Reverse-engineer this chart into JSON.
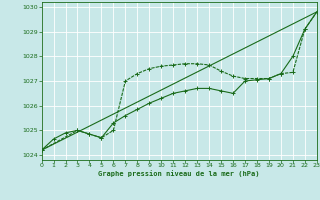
{
  "title": "Graphe pression niveau de la mer (hPa)",
  "bg_color": "#c8e8e8",
  "grid_color": "#ffffff",
  "line_color": "#1a6b1a",
  "xlim": [
    0,
    23
  ],
  "ylim": [
    1023.8,
    1030.2
  ],
  "xtick_vals": [
    0,
    1,
    2,
    3,
    4,
    5,
    6,
    7,
    8,
    9,
    10,
    11,
    12,
    13,
    14,
    15,
    16,
    17,
    18,
    19,
    20,
    21,
    22,
    23
  ],
  "ytick_vals": [
    1024,
    1025,
    1026,
    1027,
    1028,
    1029,
    1030
  ],
  "series1_x": [
    0,
    1,
    2,
    3,
    4,
    5,
    6,
    7,
    8,
    9,
    10,
    11,
    12,
    13,
    14,
    15,
    16,
    17,
    18,
    19,
    20,
    21,
    22,
    23
  ],
  "series1_y": [
    1024.2,
    1024.65,
    1024.9,
    1025.0,
    1024.85,
    1024.7,
    1025.3,
    1025.6,
    1025.85,
    1026.1,
    1026.3,
    1026.5,
    1026.6,
    1026.7,
    1026.7,
    1026.6,
    1026.5,
    1027.0,
    1027.05,
    1027.1,
    1027.3,
    1028.0,
    1029.1,
    1029.8
  ],
  "series2_x": [
    0,
    3,
    4,
    5,
    6,
    7,
    8,
    9,
    10,
    11,
    12,
    13,
    14,
    15,
    16,
    17,
    18,
    19,
    20,
    21,
    22,
    23
  ],
  "series2_y": [
    1024.2,
    1025.0,
    1024.85,
    1024.7,
    1025.0,
    1027.0,
    1027.3,
    1027.5,
    1027.6,
    1027.65,
    1027.7,
    1027.7,
    1027.65,
    1027.4,
    1027.2,
    1027.1,
    1027.1,
    1027.1,
    1027.3,
    1027.35,
    1029.1,
    1029.8
  ],
  "series3_x": [
    0,
    23
  ],
  "series3_y": [
    1024.2,
    1029.8
  ]
}
